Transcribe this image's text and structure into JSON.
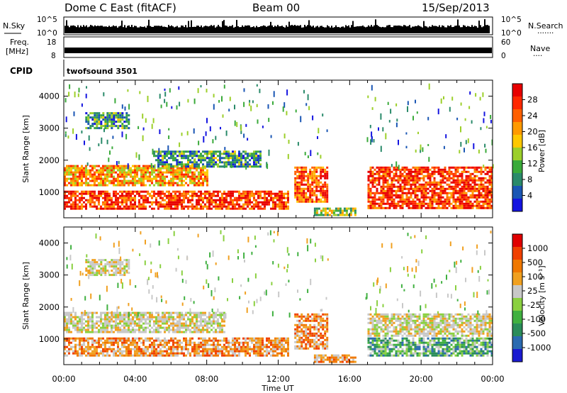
{
  "header": {
    "station": "Dome C East (fitACF)",
    "beam": "Beam 00",
    "date": "15/Sep/2013"
  },
  "strips": {
    "nsky": {
      "label": "N.Sky",
      "ticks": [
        "10^5",
        "10^0"
      ],
      "right_label": "N.Search",
      "right_ticks": [
        "10^5",
        "10^0"
      ],
      "right_marker": "·······"
    },
    "freq": {
      "label_line1": "Freq.",
      "label_line2": "[MHz]",
      "ticks": [
        "18",
        "8"
      ],
      "right_label": "Nave",
      "right_ticks": [
        "60",
        "0"
      ],
      "right_marker": "····"
    },
    "cpid": {
      "label": "CPID",
      "text": "twofsound 3501"
    }
  },
  "chart_data": [
    {
      "type": "heatmap",
      "panel": "power",
      "title": "",
      "xlabel": "Time UT",
      "ylabel": "Slant Range [km]",
      "xlim": [
        "00:00",
        "24:00"
      ],
      "ylim": [
        200,
        4500
      ],
      "x_ticks": [
        "00:00",
        "04:00",
        "08:00",
        "12:00",
        "16:00",
        "20:00",
        "00:00"
      ],
      "y_ticks": [
        "1000",
        "2000",
        "3000",
        "4000"
      ],
      "colorbar": {
        "label": "Power [dB]",
        "ticks": [
          "4",
          "8",
          "12",
          "16",
          "20",
          "24",
          "28"
        ],
        "colors": [
          "#1414e0",
          "#1a56b4",
          "#2a8a6a",
          "#3aaa3a",
          "#9ccf2a",
          "#ffc800",
          "#ff9a00",
          "#ff6000",
          "#ff2800",
          "#e80000"
        ]
      },
      "bands": [
        {
          "t0": 0.0,
          "t1": 12.6,
          "r0": 500,
          "r1": 1050,
          "level": 0.85
        },
        {
          "t0": 0.0,
          "t1": 8.0,
          "r0": 1250,
          "r1": 1850,
          "level": 0.65
        },
        {
          "t0": 12.9,
          "t1": 14.8,
          "r0": 700,
          "r1": 1800,
          "level": 0.8
        },
        {
          "t0": 14.0,
          "t1": 16.3,
          "r0": 280,
          "r1": 520,
          "level": 0.45
        },
        {
          "t0": 17.0,
          "t1": 24.0,
          "r0": 500,
          "r1": 1800,
          "level": 0.85
        },
        {
          "t0": 1.2,
          "t1": 3.6,
          "r0": 3000,
          "r1": 3500,
          "level": 0.3
        },
        {
          "t0": 5.0,
          "t1": 11.0,
          "r0": 1800,
          "r1": 2300,
          "level": 0.3
        }
      ]
    },
    {
      "type": "heatmap",
      "panel": "velocity",
      "title": "",
      "xlabel": "Time UT",
      "ylabel": "Slant Range [km]",
      "xlim": [
        "00:00",
        "24:00"
      ],
      "ylim": [
        200,
        4500
      ],
      "x_ticks": [
        "00:00",
        "04:00",
        "08:00",
        "12:00",
        "16:00",
        "20:00",
        "00:00"
      ],
      "y_ticks": [
        "1000",
        "2000",
        "3000",
        "4000"
      ],
      "colorbar": {
        "label": "Velocity [m s⁻¹]",
        "ticks": [
          "1000",
          "500",
          "100",
          "25",
          "-25",
          "-100",
          "-500",
          "-1000"
        ],
        "colors": [
          "#1a1ad0",
          "#2a6ab0",
          "#2a8c5a",
          "#40b040",
          "#8ad040",
          "#c8c8c8",
          "#f0a020",
          "#f07800",
          "#f04000",
          "#e00000"
        ]
      },
      "bands": [
        {
          "t0": 0.0,
          "t1": 12.6,
          "r0": 500,
          "r1": 1050,
          "tone": "orange"
        },
        {
          "t0": 0.0,
          "t1": 9.0,
          "r0": 1250,
          "r1": 1850,
          "tone": "grey"
        },
        {
          "t0": 12.9,
          "t1": 14.8,
          "r0": 700,
          "r1": 1800,
          "tone": "orange"
        },
        {
          "t0": 14.0,
          "t1": 16.3,
          "r0": 280,
          "r1": 520,
          "tone": "orange"
        },
        {
          "t0": 17.0,
          "t1": 24.0,
          "r0": 500,
          "r1": 1050,
          "tone": "green"
        },
        {
          "t0": 17.0,
          "t1": 24.0,
          "r0": 1100,
          "r1": 1800,
          "tone": "grey"
        },
        {
          "t0": 1.2,
          "t1": 3.6,
          "r0": 3000,
          "r1": 3500,
          "tone": "grey"
        }
      ]
    }
  ]
}
